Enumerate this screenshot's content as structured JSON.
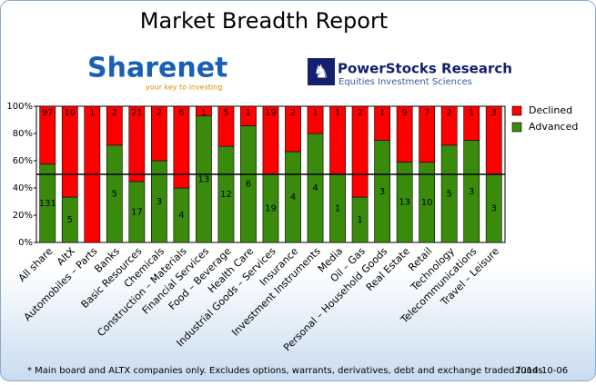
{
  "header": {
    "logo_left": "Sharenet",
    "logo_left_tagline": "your key to investing",
    "logo_right": "PowerStocks Research",
    "logo_right_tagline": "Equities Investment Sciences"
  },
  "chart_data": {
    "type": "stacked_percent_bar",
    "title": "Market Breadth Report",
    "categories": [
      "All share",
      "AltX",
      "Automobiles – Parts",
      "Banks",
      "Basic Resources",
      "Chemicals",
      "Construction – Materials",
      "Financial Services",
      "Food – Beverage",
      "Health Care",
      "Industrial Goods – Services",
      "Insurance",
      "Investment Instruments",
      "Media",
      "Oil – Gas",
      "Personal – Household Goods",
      "Real Estate",
      "Retail",
      "Technology",
      "Telecommunications",
      "Travel – Leisure"
    ],
    "series": [
      {
        "name": "Advanced",
        "color": "#3a8a0c",
        "values": [
          131,
          5,
          0,
          5,
          17,
          3,
          4,
          13,
          12,
          6,
          19,
          4,
          4,
          1,
          1,
          3,
          13,
          10,
          5,
          3,
          3
        ]
      },
      {
        "name": "Declined",
        "color": "#ff0000",
        "values": [
          97,
          10,
          1,
          2,
          21,
          2,
          6,
          1,
          5,
          1,
          19,
          2,
          1,
          1,
          2,
          1,
          9,
          7,
          2,
          1,
          3
        ]
      }
    ],
    "ylim": [
      0,
      100
    ],
    "yticks": [
      {
        "value": 0,
        "label": "0%"
      },
      {
        "value": 20,
        "label": "20%"
      },
      {
        "value": 40,
        "label": "40%"
      },
      {
        "value": 60,
        "label": "60%"
      },
      {
        "value": 80,
        "label": "80%"
      },
      {
        "value": 100,
        "label": "100%"
      }
    ],
    "reference_line": 50,
    "legend": "top-right",
    "footnote": "* Main board and ALTX companies only. Excludes options, warrants, derivatives, debt and exchange traded funds",
    "date": "2014-10-06"
  }
}
